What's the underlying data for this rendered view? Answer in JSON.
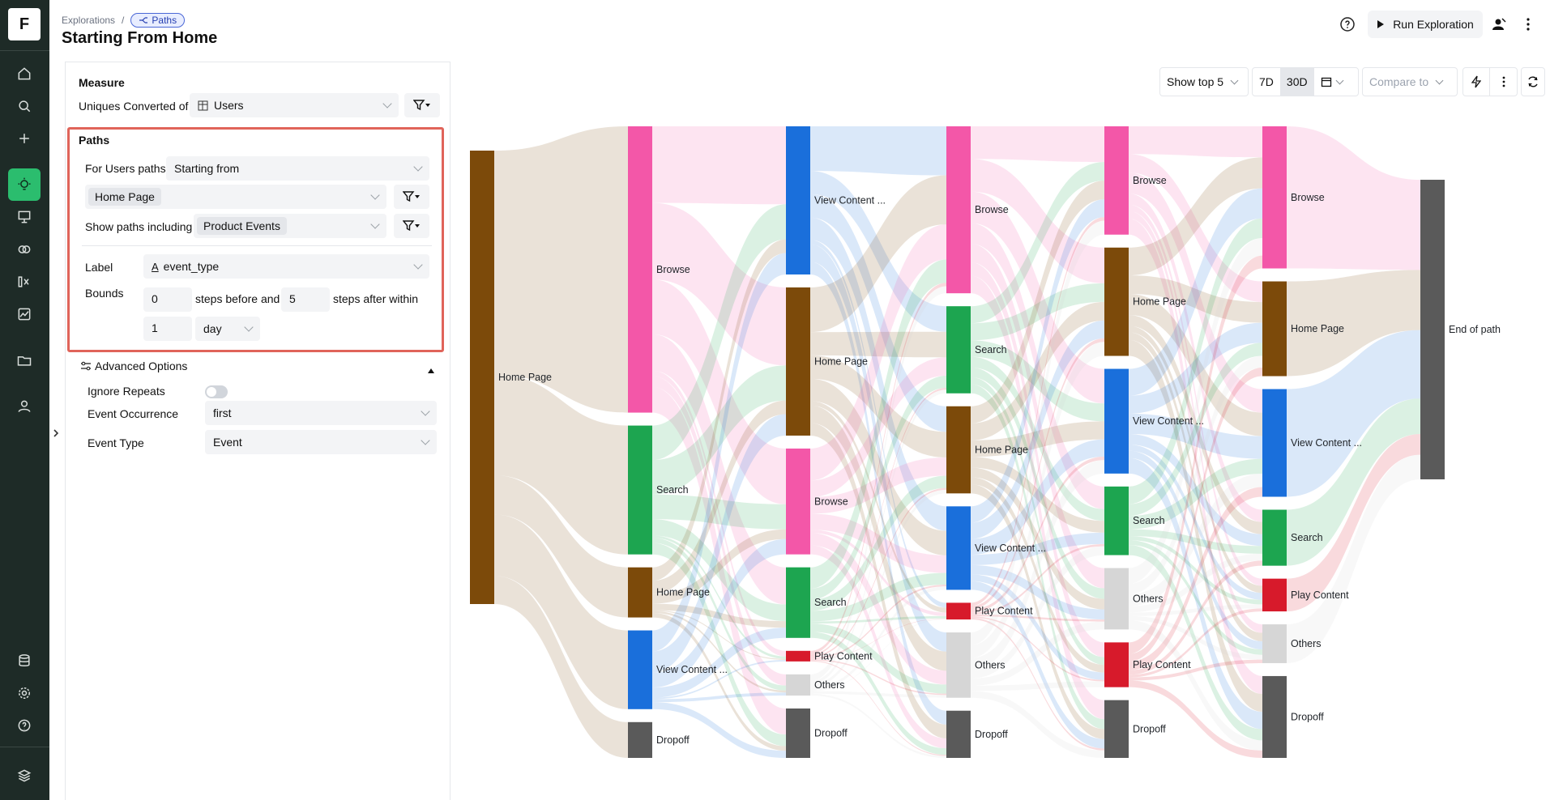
{
  "rail": {
    "logo": "F",
    "items": [
      "home-icon",
      "search-icon",
      "plus-icon",
      "lightbulb-icon",
      "presentation-icon",
      "circles-icon",
      "formula-icon",
      "chart-icon",
      "folder-icon",
      "user-icon"
    ],
    "bottom": [
      "database-icon",
      "gear-icon",
      "help-icon",
      "layers-icon"
    ]
  },
  "header": {
    "breadcrumb_root": "Explorations",
    "breadcrumb_sep": "/",
    "breadcrumb_current": "Paths",
    "title": "Starting From Home",
    "run_label": "Run Exploration"
  },
  "measure": {
    "heading": "Measure",
    "label": "Uniques Converted of",
    "value": "Users"
  },
  "paths": {
    "heading": "Paths",
    "for_label": "For Users paths",
    "direction": "Starting from",
    "start_event": "Home Page",
    "show_label": "Show paths including",
    "include": "Product Events",
    "label_label": "Label",
    "label_value": "event_type",
    "bounds_label": "Bounds",
    "steps_before": "0",
    "steps_before_label": "steps before and",
    "steps_after": "5",
    "steps_after_label": "steps after within",
    "within_value": "1",
    "within_unit": "day"
  },
  "advanced": {
    "heading": "Advanced Options",
    "ignore_repeats_label": "Ignore Repeats",
    "ignore_repeats_on": false,
    "occurrence_label": "Event Occurrence",
    "occurrence_value": "first",
    "event_type_label": "Event Type",
    "event_type_value": "Event"
  },
  "toolbar": {
    "show_top": "Show top 5",
    "range_7d": "7D",
    "range_30d": "30D",
    "selected_range": "30D",
    "compare_placeholder": "Compare to"
  },
  "colors": {
    "Home Page": "#7c4a0a",
    "Browse": "#f357a8",
    "Search": "#1da550",
    "View Content": "#1a6fdb",
    "Play Content": "#d71a2b",
    "Others": "#d6d6d6",
    "Dropoff": "#5a5a5a",
    "End of path": "#5a5a5a"
  },
  "chart_data": {
    "type": "sankey",
    "steps": [
      {
        "nodes": [
          {
            "label": "Home Page",
            "cat": "Home Page",
            "value": 100
          }
        ]
      },
      {
        "nodes": [
          {
            "label": "Browse",
            "cat": "Browse",
            "value": 40
          },
          {
            "label": "Search",
            "cat": "Search",
            "value": 18
          },
          {
            "label": "Home Page",
            "cat": "Home Page",
            "value": 7
          },
          {
            "label": "View Content ...",
            "cat": "View Content",
            "value": 11
          },
          {
            "label": "Dropoff",
            "cat": "Dropoff",
            "value": 5
          }
        ]
      },
      {
        "nodes": [
          {
            "label": "View Content ...",
            "cat": "View Content",
            "value": 21
          },
          {
            "label": "Home Page",
            "cat": "Home Page",
            "value": 21
          },
          {
            "label": "Browse",
            "cat": "Browse",
            "value": 15
          },
          {
            "label": "Search",
            "cat": "Search",
            "value": 10
          },
          {
            "label": "Play Content",
            "cat": "Play Content",
            "value": 1.5
          },
          {
            "label": "Others",
            "cat": "Others",
            "value": 3
          },
          {
            "label": "Dropoff",
            "cat": "Dropoff",
            "value": 7
          }
        ]
      },
      {
        "nodes": [
          {
            "label": "Browse",
            "cat": "Browse",
            "value": 23
          },
          {
            "label": "Search",
            "cat": "Search",
            "value": 12
          },
          {
            "label": "Home Page",
            "cat": "Home Page",
            "value": 12
          },
          {
            "label": "View Content ...",
            "cat": "View Content",
            "value": 11.5
          },
          {
            "label": "Play Content",
            "cat": "Play Content",
            "value": 2.3
          },
          {
            "label": "Others",
            "cat": "Others",
            "value": 9
          },
          {
            "label": "Dropoff",
            "cat": "Dropoff",
            "value": 6.5
          }
        ]
      },
      {
        "nodes": [
          {
            "label": "Browse",
            "cat": "Browse",
            "value": 15
          },
          {
            "label": "Home Page",
            "cat": "Home Page",
            "value": 15
          },
          {
            "label": "View Content ...",
            "cat": "View Content",
            "value": 14.5
          },
          {
            "label": "Search",
            "cat": "Search",
            "value": 9.5
          },
          {
            "label": "Others",
            "cat": "Others",
            "value": 8.5
          },
          {
            "label": "Play Content",
            "cat": "Play Content",
            "value": 6.2
          },
          {
            "label": "Dropoff",
            "cat": "Dropoff",
            "value": 8
          }
        ]
      },
      {
        "nodes": [
          {
            "label": "Browse",
            "cat": "Browse",
            "value": 16.5
          },
          {
            "label": "Home Page",
            "cat": "Home Page",
            "value": 11
          },
          {
            "label": "View Content ...",
            "cat": "View Content",
            "value": 12.5
          },
          {
            "label": "Search",
            "cat": "Search",
            "value": 6.5
          },
          {
            "label": "Play Content",
            "cat": "Play Content",
            "value": 3.8
          },
          {
            "label": "Others",
            "cat": "Others",
            "value": 4.5
          },
          {
            "label": "Dropoff",
            "cat": "Dropoff",
            "value": 9.5
          }
        ]
      },
      {
        "nodes": [
          {
            "label": "End of path",
            "cat": "End of path",
            "value": 42
          }
        ]
      }
    ]
  }
}
